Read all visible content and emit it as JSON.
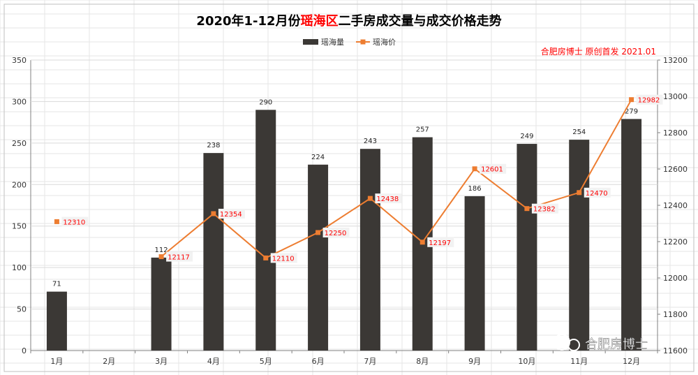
{
  "chart_data": {
    "type": "bar+line",
    "title_parts": [
      {
        "text": "2020年1-12月份",
        "color": "#000000"
      },
      {
        "text": "瑶海区",
        "color": "#ff0000"
      },
      {
        "text": "二手房成交量与成交价格走势",
        "color": "#000000"
      }
    ],
    "source_note": "合肥房博士 原创首发  2021.01",
    "watermark": "合肥房博士",
    "categories": [
      "1月",
      "2月",
      "3月",
      "4月",
      "5月",
      "6月",
      "7月",
      "8月",
      "9月",
      "10月",
      "11月",
      "12月"
    ],
    "series": [
      {
        "name": "瑶海量",
        "type": "bar",
        "axis": "left",
        "color": "#3b3835",
        "values": [
          71,
          null,
          112,
          238,
          290,
          224,
          243,
          257,
          186,
          249,
          254,
          279
        ]
      },
      {
        "name": "瑶海价",
        "type": "line",
        "axis": "right",
        "color": "#ed7d31",
        "values": [
          12310,
          null,
          12117,
          12354,
          12110,
          12250,
          12438,
          12197,
          12601,
          12382,
          12470,
          12982
        ]
      }
    ],
    "y_left": {
      "min": 0,
      "max": 350,
      "step": 50
    },
    "y_right": {
      "min": 11600,
      "max": 13200,
      "step": 200
    },
    "legend_position": "top-center",
    "grid": true
  }
}
